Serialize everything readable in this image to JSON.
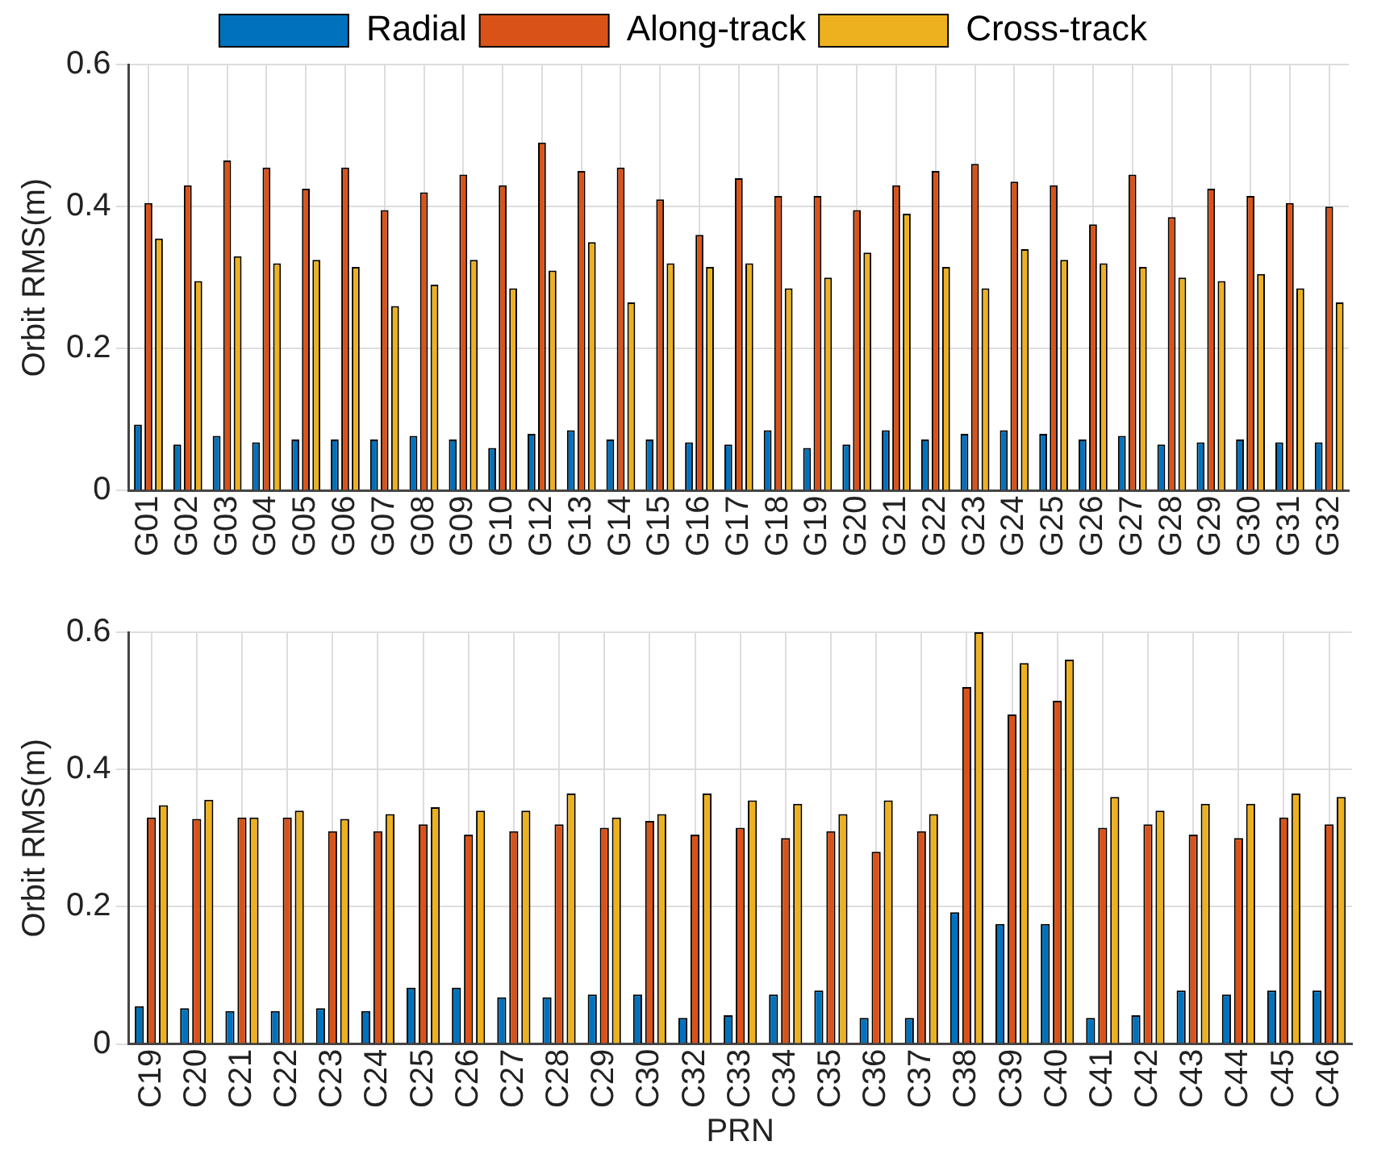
{
  "chart_data": [
    {
      "type": "bar",
      "ylabel": "Orbit RMS(m)",
      "categories": [
        "G01",
        "G02",
        "G03",
        "G04",
        "G05",
        "G06",
        "G07",
        "G08",
        "G09",
        "G10",
        "G12",
        "G13",
        "G14",
        "G15",
        "G16",
        "G17",
        "G18",
        "G19",
        "G20",
        "G21",
        "G22",
        "G23",
        "G24",
        "G25",
        "G26",
        "G27",
        "G28",
        "G29",
        "G30",
        "G31",
        "G32"
      ],
      "series": [
        {
          "name": "Radial",
          "color": "#0072bd",
          "values": [
            0.093,
            0.065,
            0.077,
            0.068,
            0.072,
            0.072,
            0.072,
            0.077,
            0.072,
            0.06,
            0.08,
            0.085,
            0.072,
            0.072,
            0.068,
            0.065,
            0.085,
            0.06,
            0.065,
            0.085,
            0.072,
            0.08,
            0.085,
            0.08,
            0.072,
            0.077,
            0.065,
            0.068,
            0.072,
            0.068,
            0.068
          ]
        },
        {
          "name": "Along-track",
          "color": "#d95319",
          "values": [
            0.405,
            0.43,
            0.465,
            0.455,
            0.425,
            0.455,
            0.395,
            0.42,
            0.445,
            0.43,
            0.49,
            0.45,
            0.455,
            0.41,
            0.36,
            0.44,
            0.415,
            0.415,
            0.395,
            0.43,
            0.45,
            0.46,
            0.435,
            0.43,
            0.375,
            0.445,
            0.385,
            0.425,
            0.415,
            0.405,
            0.4
          ]
        },
        {
          "name": "Cross-track",
          "color": "#edb120",
          "values": [
            0.355,
            0.295,
            0.33,
            0.32,
            0.325,
            0.315,
            0.26,
            0.29,
            0.325,
            0.285,
            0.31,
            0.35,
            0.265,
            0.32,
            0.315,
            0.32,
            0.285,
            0.3,
            0.335,
            0.39,
            0.315,
            0.285,
            0.34,
            0.325,
            0.32,
            0.315,
            0.3,
            0.295,
            0.305,
            0.285,
            0.265
          ]
        }
      ],
      "ylim": [
        0,
        0.6
      ],
      "yticks": [
        0,
        0.2,
        0.4,
        0.6
      ],
      "grid": true,
      "legend": "top"
    },
    {
      "type": "bar",
      "xlabel": "PRN",
      "ylabel": "Orbit RMS(m)",
      "categories": [
        "C19",
        "C20",
        "C21",
        "C22",
        "C23",
        "C24",
        "C25",
        "C26",
        "C27",
        "C28",
        "C29",
        "C30",
        "C32",
        "C33",
        "C34",
        "C35",
        "C36",
        "C37",
        "C38",
        "C39",
        "C40",
        "C41",
        "C42",
        "C43",
        "C44",
        "C45",
        "C46"
      ],
      "series": [
        {
          "color": "#0072bd",
          "values": [
            0.055,
            0.052,
            0.048,
            0.048,
            0.052,
            0.048,
            0.082,
            0.082,
            0.068,
            0.068,
            0.072,
            0.072,
            0.038,
            0.042,
            0.072,
            0.078,
            0.038,
            0.038,
            0.192,
            0.175,
            0.175,
            0.038,
            0.042,
            0.078,
            0.072,
            0.078,
            0.078
          ]
        },
        {
          "color": "#d95319",
          "values": [
            0.33,
            0.328,
            0.33,
            0.33,
            0.31,
            0.31,
            0.32,
            0.305,
            0.31,
            0.32,
            0.315,
            0.325,
            0.305,
            0.315,
            0.3,
            0.31,
            0.28,
            0.31,
            0.52,
            0.48,
            0.5,
            0.315,
            0.32,
            0.305,
            0.3,
            0.33,
            0.32
          ]
        },
        {
          "color": "#edb120",
          "values": [
            0.348,
            0.356,
            0.33,
            0.34,
            0.328,
            0.335,
            0.345,
            0.34,
            0.34,
            0.365,
            0.33,
            0.335,
            0.365,
            0.355,
            0.35,
            0.335,
            0.355,
            0.335,
            0.6,
            0.555,
            0.56,
            0.36,
            0.34,
            0.35,
            0.35,
            0.365,
            0.36
          ]
        }
      ],
      "ylim": [
        0,
        0.6
      ],
      "yticks": [
        0,
        0.2,
        0.4,
        0.6
      ],
      "grid": true
    }
  ]
}
